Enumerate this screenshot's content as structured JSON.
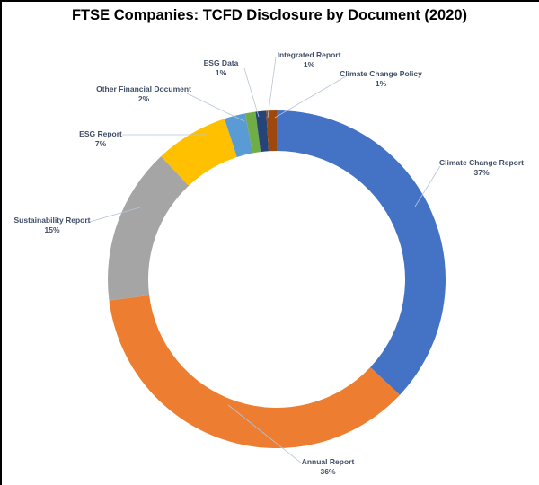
{
  "chart_data": {
    "type": "pie",
    "variant": "donut",
    "title": "FTSE Companies: TCFD Disclosure by Document (2020)",
    "categories": [
      "Climate Change Report",
      "Annual Report",
      "Sustainability Report",
      "ESG Report",
      "Other Financial Document",
      "ESG Data",
      "Integrated Report",
      "Climate Change Policy"
    ],
    "values": [
      37,
      36,
      15,
      7,
      2,
      1,
      1,
      1
    ],
    "value_labels": [
      "37%",
      "36%",
      "15%",
      "7%",
      "2%",
      "1%",
      "1%",
      "1%"
    ],
    "colors": [
      "#4472c4",
      "#ed7d31",
      "#a5a5a5",
      "#ffc000",
      "#5b9bd5",
      "#70ad47",
      "#264478",
      "#9e480e"
    ],
    "start_angle_deg": 0,
    "direction": "clockwise",
    "legend": "none",
    "data_labels": "outside with leader lines"
  },
  "labels": [
    {
      "name": "Climate Change Report",
      "pct": "37%"
    },
    {
      "name": "Annual Report",
      "pct": "36%"
    },
    {
      "name": "Sustainability Report",
      "pct": "15%"
    },
    {
      "name": "ESG Report",
      "pct": "7%"
    },
    {
      "name": "Other Financial Document",
      "pct": "2%"
    },
    {
      "name": "ESG Data",
      "pct": "1%"
    },
    {
      "name": "Integrated Report",
      "pct": "1%"
    },
    {
      "name": "Climate Change Policy",
      "pct": "1%"
    }
  ]
}
